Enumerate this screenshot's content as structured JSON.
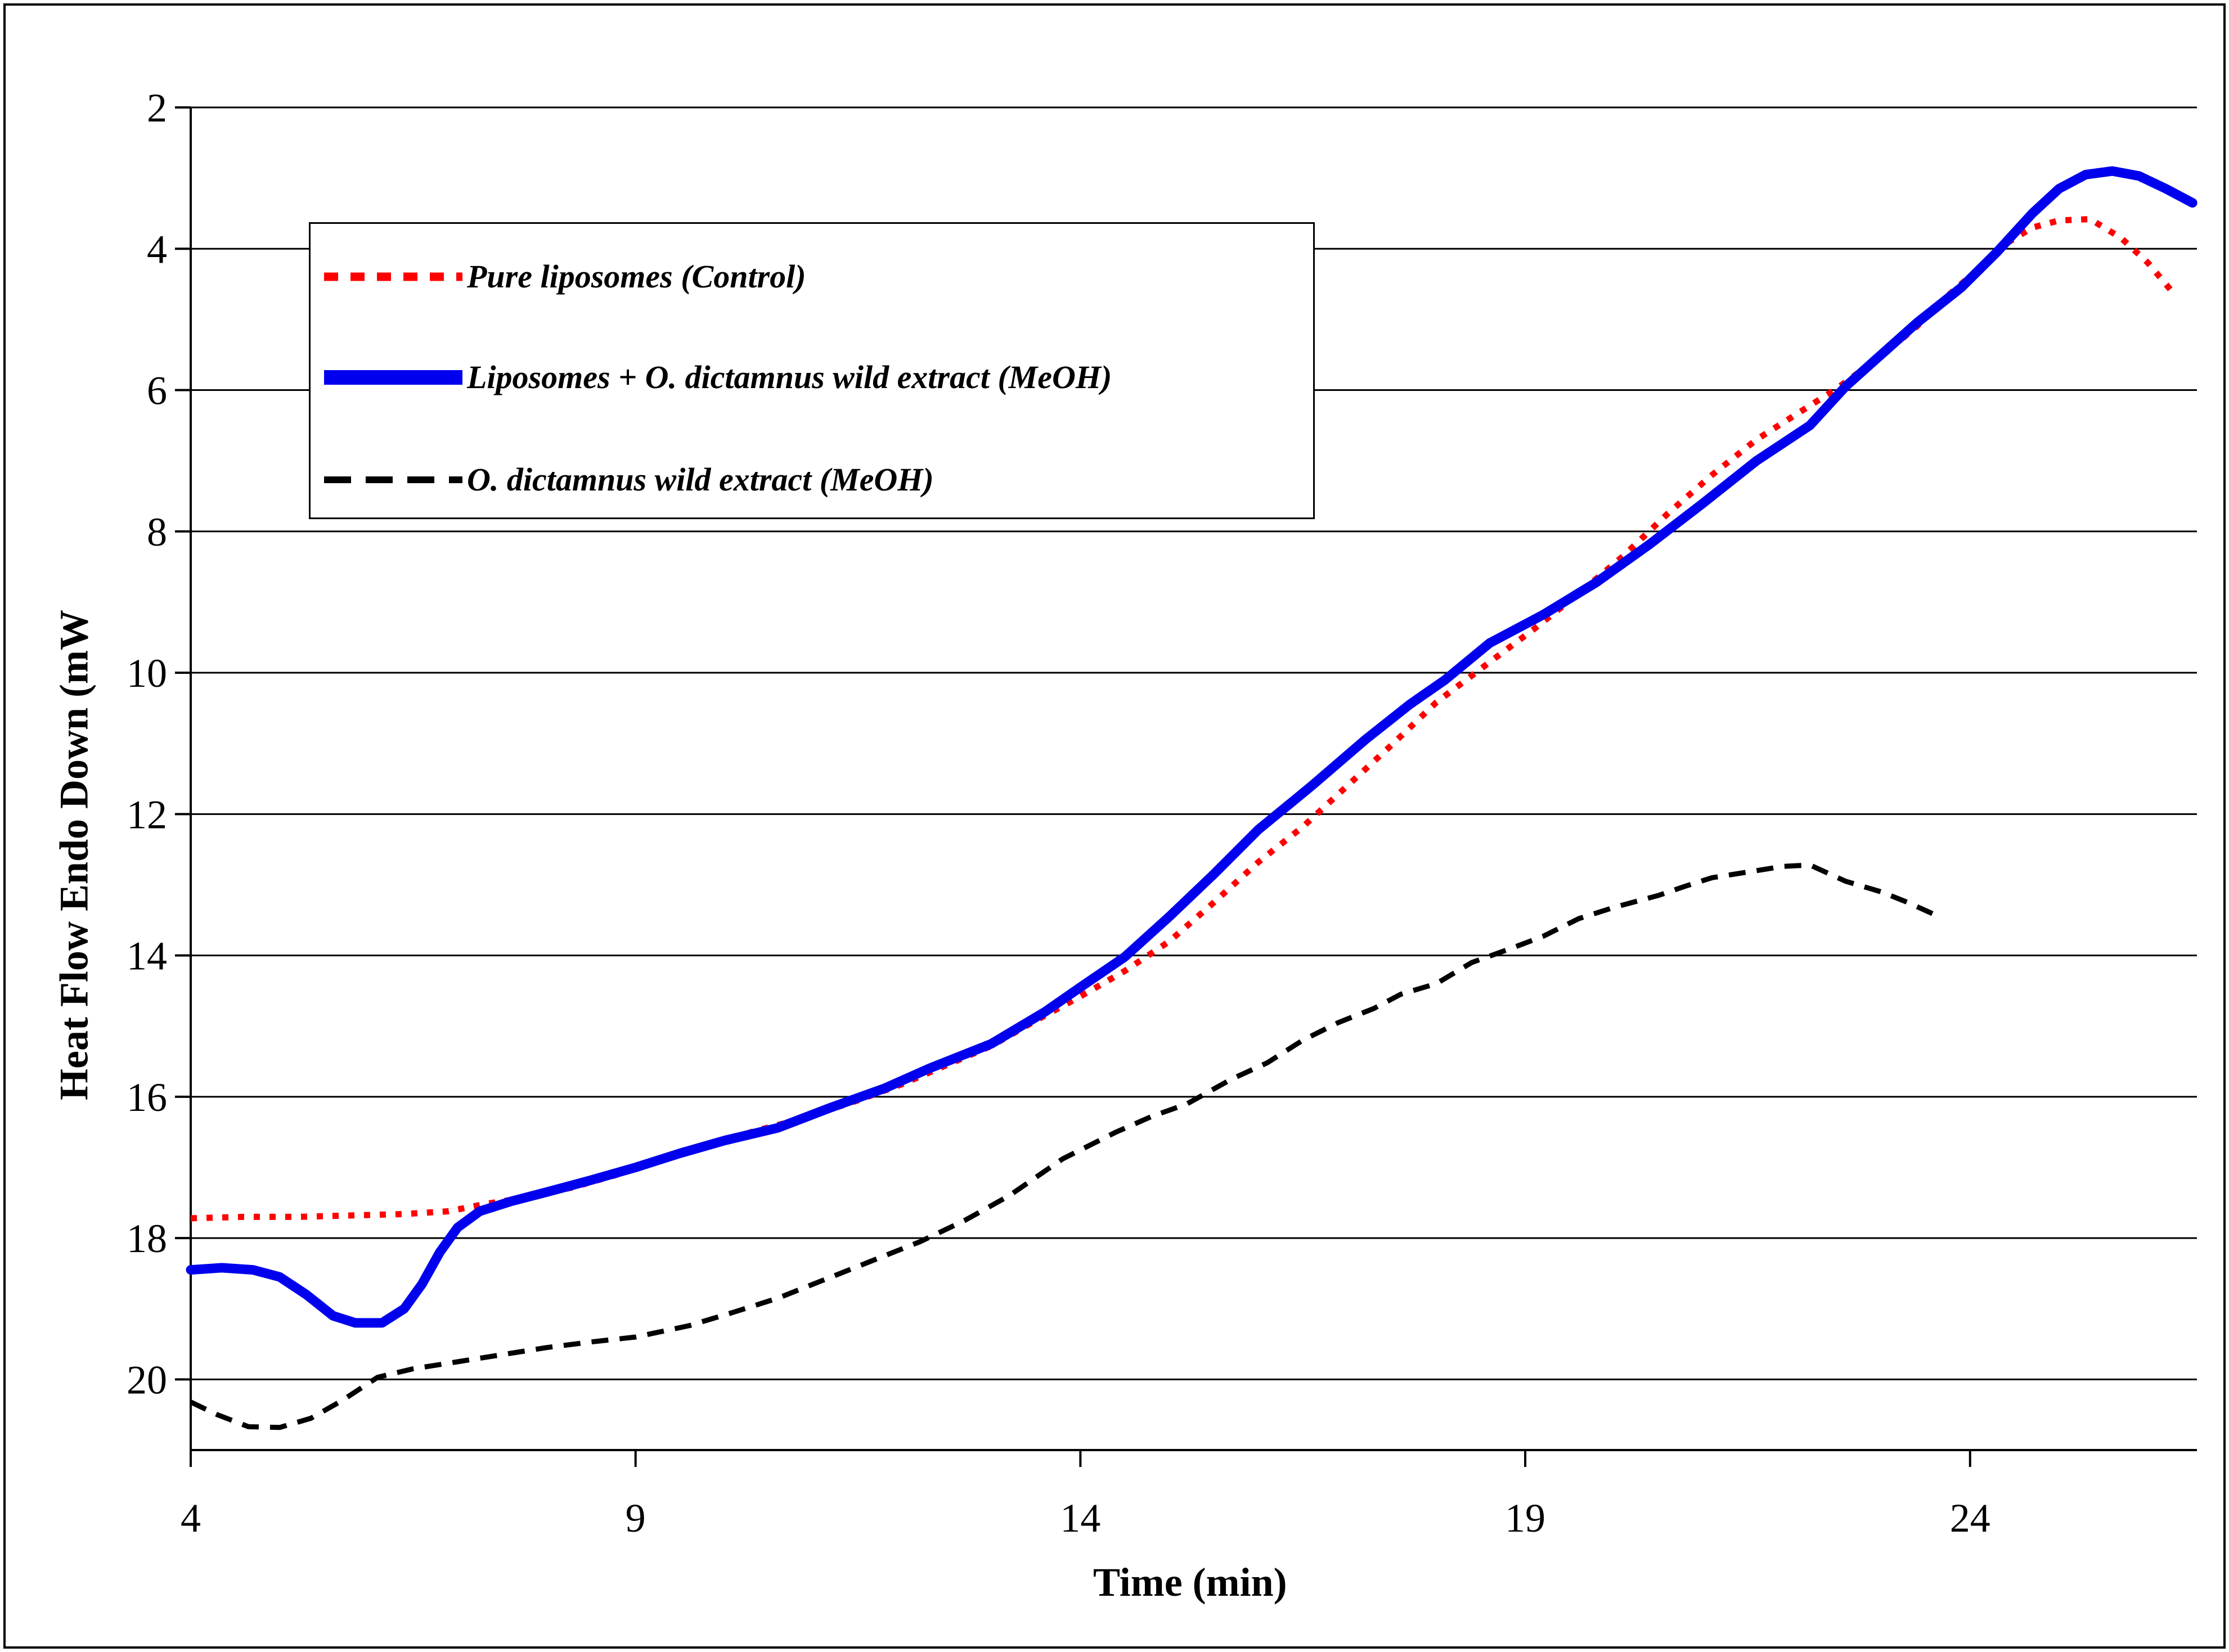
{
  "figure": {
    "background": "#ffffff",
    "border_color": "#000000"
  },
  "chart_data": {
    "type": "line",
    "title": "",
    "xlabel": "Time (min)",
    "ylabel": "Heat Flow Endo Down (mW",
    "xlim": [
      4,
      26.55
    ],
    "ylim": [
      2,
      21
    ],
    "x_ticks": [
      4,
      9,
      14,
      19,
      24
    ],
    "y_ticks": [
      2,
      4,
      6,
      8,
      10,
      12,
      14,
      16,
      18,
      20
    ],
    "y_axis_inverted": true,
    "grid": "horizontal-only",
    "legend_position": "upper-left-box",
    "series": [
      {
        "name": "Pure liposomes (Control)",
        "color": "#ff0000",
        "style": "dotted",
        "points": [
          [
            4.0,
            17.72
          ],
          [
            4.6,
            17.7
          ],
          [
            5.2,
            17.7
          ],
          [
            5.8,
            17.68
          ],
          [
            6.4,
            17.66
          ],
          [
            6.9,
            17.62
          ],
          [
            7.3,
            17.52
          ],
          [
            7.8,
            17.42
          ],
          [
            8.3,
            17.28
          ],
          [
            8.8,
            17.1
          ],
          [
            9.3,
            16.9
          ],
          [
            9.8,
            16.7
          ],
          [
            10.3,
            16.5
          ],
          [
            10.9,
            16.3
          ],
          [
            11.5,
            16.05
          ],
          [
            12.0,
            15.82
          ],
          [
            12.5,
            15.55
          ],
          [
            13.0,
            15.28
          ],
          [
            13.5,
            14.92
          ],
          [
            14.0,
            14.58
          ],
          [
            14.5,
            14.22
          ],
          [
            15.0,
            13.8
          ],
          [
            15.5,
            13.25
          ],
          [
            16.0,
            12.68
          ],
          [
            16.5,
            12.18
          ],
          [
            17.0,
            11.6
          ],
          [
            17.5,
            11.02
          ],
          [
            18.0,
            10.42
          ],
          [
            18.6,
            9.85
          ],
          [
            19.1,
            9.38
          ],
          [
            19.6,
            8.88
          ],
          [
            20.1,
            8.35
          ],
          [
            20.6,
            7.75
          ],
          [
            21.1,
            7.2
          ],
          [
            21.6,
            6.7
          ],
          [
            22.1,
            6.3
          ],
          [
            22.5,
            5.98
          ],
          [
            23.0,
            5.52
          ],
          [
            23.4,
            5.1
          ],
          [
            23.7,
            4.72
          ],
          [
            24.1,
            4.28
          ],
          [
            24.4,
            3.93
          ],
          [
            24.7,
            3.7
          ],
          [
            25.0,
            3.6
          ],
          [
            25.35,
            3.58
          ],
          [
            25.7,
            3.85
          ],
          [
            26.0,
            4.2
          ],
          [
            26.3,
            4.65
          ]
        ]
      },
      {
        "name": "Liposomes + O. dictamnus wild extract (MeOH)",
        "color": "#0000ee",
        "style": "solid",
        "points": [
          [
            4.0,
            18.45
          ],
          [
            4.35,
            18.42
          ],
          [
            4.7,
            18.45
          ],
          [
            5.0,
            18.55
          ],
          [
            5.3,
            18.8
          ],
          [
            5.6,
            19.1
          ],
          [
            5.85,
            19.2
          ],
          [
            6.15,
            19.2
          ],
          [
            6.4,
            19.0
          ],
          [
            6.6,
            18.65
          ],
          [
            6.8,
            18.2
          ],
          [
            7.0,
            17.85
          ],
          [
            7.25,
            17.62
          ],
          [
            7.6,
            17.48
          ],
          [
            8.0,
            17.35
          ],
          [
            8.5,
            17.18
          ],
          [
            9.0,
            17.0
          ],
          [
            9.5,
            16.8
          ],
          [
            10.0,
            16.62
          ],
          [
            10.6,
            16.44
          ],
          [
            11.2,
            16.15
          ],
          [
            11.8,
            15.88
          ],
          [
            12.3,
            15.6
          ],
          [
            13.0,
            15.25
          ],
          [
            13.6,
            14.8
          ],
          [
            14.0,
            14.45
          ],
          [
            14.5,
            14.02
          ],
          [
            15.0,
            13.45
          ],
          [
            15.5,
            12.85
          ],
          [
            16.0,
            12.22
          ],
          [
            16.6,
            11.6
          ],
          [
            17.2,
            10.95
          ],
          [
            17.7,
            10.45
          ],
          [
            18.1,
            10.1
          ],
          [
            18.6,
            9.58
          ],
          [
            19.2,
            9.18
          ],
          [
            19.8,
            8.72
          ],
          [
            20.4,
            8.18
          ],
          [
            21.0,
            7.6
          ],
          [
            21.6,
            7.0
          ],
          [
            22.2,
            6.5
          ],
          [
            22.6,
            5.95
          ],
          [
            23.0,
            5.5
          ],
          [
            23.4,
            5.05
          ],
          [
            23.9,
            4.55
          ],
          [
            24.3,
            4.05
          ],
          [
            24.7,
            3.5
          ],
          [
            25.0,
            3.15
          ],
          [
            25.3,
            2.95
          ],
          [
            25.6,
            2.9
          ],
          [
            25.9,
            2.97
          ],
          [
            26.2,
            3.15
          ],
          [
            26.5,
            3.35
          ]
        ]
      },
      {
        "name": "O. dictamnus wild extract (MeOH)",
        "color": "#000000",
        "style": "dashed",
        "points": [
          [
            4.0,
            20.32
          ],
          [
            4.3,
            20.5
          ],
          [
            4.65,
            20.67
          ],
          [
            5.0,
            20.68
          ],
          [
            5.35,
            20.55
          ],
          [
            5.7,
            20.3
          ],
          [
            6.1,
            19.97
          ],
          [
            6.5,
            19.85
          ],
          [
            7.0,
            19.75
          ],
          [
            7.5,
            19.65
          ],
          [
            8.0,
            19.55
          ],
          [
            8.5,
            19.47
          ],
          [
            9.0,
            19.4
          ],
          [
            9.6,
            19.24
          ],
          [
            10.1,
            19.05
          ],
          [
            10.6,
            18.85
          ],
          [
            11.1,
            18.6
          ],
          [
            11.7,
            18.3
          ],
          [
            12.2,
            18.05
          ],
          [
            12.7,
            17.75
          ],
          [
            13.2,
            17.4
          ],
          [
            13.8,
            16.88
          ],
          [
            14.4,
            16.5
          ],
          [
            14.8,
            16.28
          ],
          [
            15.2,
            16.1
          ],
          [
            15.7,
            15.75
          ],
          [
            16.1,
            15.52
          ],
          [
            16.5,
            15.2
          ],
          [
            16.9,
            14.95
          ],
          [
            17.3,
            14.75
          ],
          [
            17.6,
            14.55
          ],
          [
            18.0,
            14.4
          ],
          [
            18.4,
            14.1
          ],
          [
            18.8,
            13.92
          ],
          [
            19.2,
            13.73
          ],
          [
            19.6,
            13.48
          ],
          [
            20.0,
            13.32
          ],
          [
            20.5,
            13.15
          ],
          [
            20.8,
            13.02
          ],
          [
            21.1,
            12.9
          ],
          [
            21.5,
            12.82
          ],
          [
            21.9,
            12.74
          ],
          [
            22.2,
            12.72
          ],
          [
            22.6,
            12.95
          ],
          [
            23.0,
            13.1
          ],
          [
            23.3,
            13.25
          ],
          [
            23.65,
            13.45
          ]
        ]
      }
    ]
  }
}
